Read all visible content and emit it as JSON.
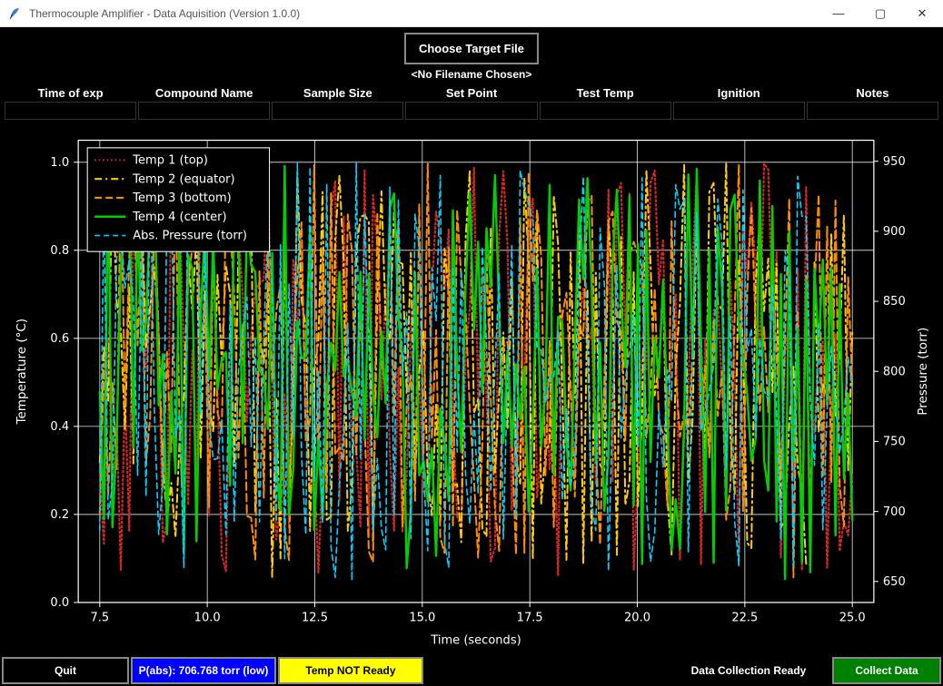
{
  "window": {
    "title": "Thermocouple Amplifier - Data Aquisition (Version 1.0.0)",
    "controls": {
      "minimize": "—",
      "maximize": "▢",
      "close": "✕"
    }
  },
  "top": {
    "choose_button": "Choose Target File",
    "filename_label": "<No Filename Chosen>"
  },
  "columns": [
    {
      "label": "Time of exp",
      "value": ""
    },
    {
      "label": "Compound Name",
      "value": ""
    },
    {
      "label": "Sample Size",
      "value": ""
    },
    {
      "label": "Set Point",
      "value": ""
    },
    {
      "label": "Test Temp",
      "value": ""
    },
    {
      "label": "Ignition",
      "value": ""
    },
    {
      "label": "Notes",
      "value": ""
    }
  ],
  "chart": {
    "xlabel": "Time (seconds)",
    "ylabel_left": "Temperature (°C)",
    "ylabel_right": "Pressure (torr)",
    "xlim": [
      7.0,
      25.5
    ],
    "ylim_left": [
      0.0,
      1.05
    ],
    "ylim_right": [
      635,
      965
    ],
    "xticks": [
      7.5,
      10.0,
      12.5,
      15.0,
      17.5,
      20.0,
      22.5,
      25.0
    ],
    "yticks_left": [
      0.0,
      0.2,
      0.4,
      0.6,
      0.8,
      1.0
    ],
    "yticks_right": [
      650,
      700,
      750,
      800,
      850,
      900,
      950
    ],
    "background_color": "#000000",
    "axis_color": "#ffffff",
    "grid_color": "#ffffff",
    "text_color": "#ffffff",
    "tick_fontsize": 13,
    "label_fontsize": 13,
    "legend_fontsize": 13,
    "legend_bg": "#000000",
    "legend_border": "#ffffff",
    "series": [
      {
        "name": "Temp 1 (top)",
        "axis": "left",
        "color": "#d62728",
        "dash": "1.5,3",
        "width": 2.2
      },
      {
        "name": "Temp 2 (equator)",
        "axis": "left",
        "color": "#ffcc00",
        "dash": "8,4,2,4",
        "width": 2.0
      },
      {
        "name": "Temp 3 (bottom)",
        "axis": "left",
        "color": "#ff8c00",
        "dash": "8,4",
        "width": 2.0
      },
      {
        "name": "Temp 4 (center)",
        "axis": "left",
        "color": "#00d000",
        "dash": "",
        "width": 2.4
      },
      {
        "name": "Abs. Pressure (torr)",
        "axis": "right",
        "color": "#00d0ff",
        "dash": "6,4",
        "width": 1.6
      }
    ],
    "n_points": 180,
    "random_seed": 42
  },
  "bottom": {
    "quit": "Quit",
    "pressure_status": "P(abs): 706.768 torr (low)",
    "temp_status": "Temp NOT Ready",
    "collection_status": "Data Collection Ready",
    "collect": "Collect Data"
  }
}
